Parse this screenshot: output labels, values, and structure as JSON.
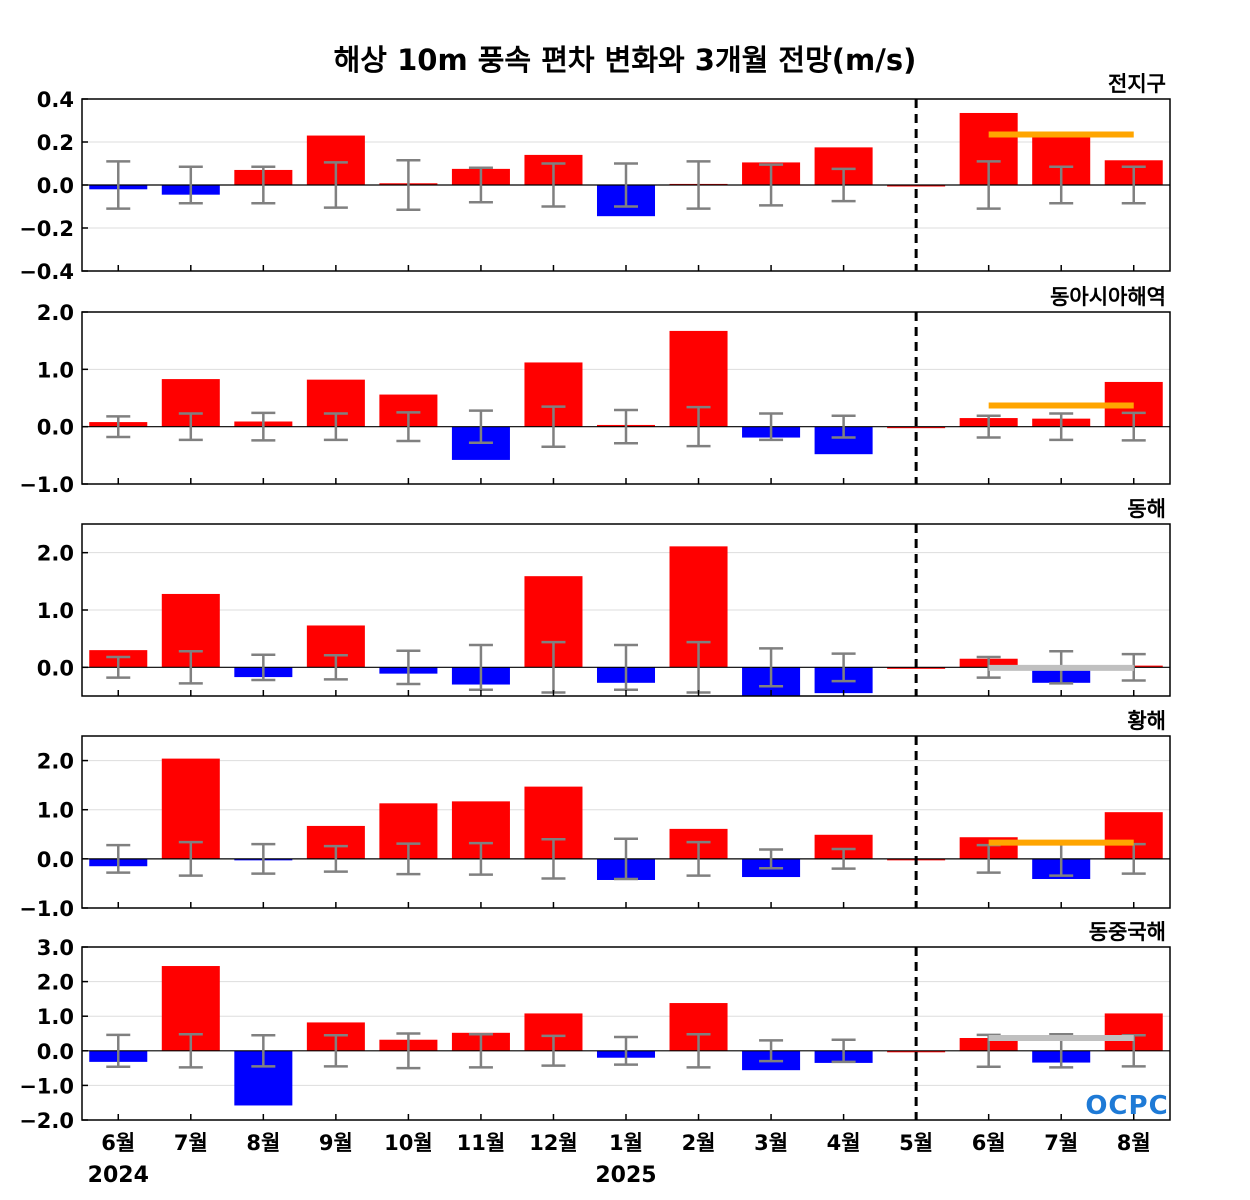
{
  "title": "해상 10m 풍속 편차 변화와 3개월 전망(m/s)",
  "logo": "OCPC",
  "colors": {
    "positive": "#ff0000",
    "negative": "#0000ff",
    "errorbar": "#808080",
    "outlook_above": "#ffa500",
    "outlook_normal": "#c0c0c0",
    "divider": "#000000"
  },
  "chart_data": {
    "type": "bar",
    "categories": [
      "6월",
      "7월",
      "8월",
      "9월",
      "10월",
      "11월",
      "12월",
      "1월",
      "2월",
      "3월",
      "4월",
      "5월",
      "6월",
      "7월",
      "8월"
    ],
    "year_labels": [
      {
        "index": 0,
        "text": "2024"
      },
      {
        "index": 7,
        "text": "2025"
      }
    ],
    "forecast_divider_after_index": 11,
    "panels": [
      {
        "name": "전지구",
        "ylim": [
          -0.4,
          0.4
        ],
        "ticks": [
          0.4,
          0.2,
          0.0,
          -0.2,
          -0.4
        ],
        "tick_labels": [
          "0.4",
          "0.2",
          "0.0",
          "−0.2",
          "−0.4"
        ],
        "values": [
          -0.02,
          -0.045,
          0.07,
          0.23,
          0.008,
          0.075,
          0.14,
          -0.145,
          0.005,
          0.105,
          0.175,
          0.0,
          0.335,
          0.235,
          0.115
        ],
        "error_half": [
          0.11,
          0.085,
          0.085,
          0.105,
          0.115,
          0.08,
          0.1,
          0.1,
          0.11,
          0.095,
          0.075,
          null,
          0.11,
          0.085,
          0.085
        ],
        "outlook": {
          "value": 0.235,
          "color": "outlook_above"
        }
      },
      {
        "name": "동아시아해역",
        "ylim": [
          -1.0,
          2.0
        ],
        "ticks": [
          2.0,
          1.0,
          0.0,
          -1.0
        ],
        "tick_labels": [
          "2.0",
          "1.0",
          "0.0",
          "−1.0"
        ],
        "values": [
          0.08,
          0.83,
          0.09,
          0.82,
          0.56,
          -0.58,
          1.12,
          0.03,
          1.67,
          -0.19,
          -0.48,
          0.0,
          0.15,
          0.14,
          0.78
        ],
        "error_half": [
          0.18,
          0.23,
          0.24,
          0.23,
          0.25,
          0.28,
          0.35,
          0.29,
          0.34,
          0.23,
          0.19,
          null,
          0.19,
          0.23,
          0.24
        ],
        "outlook": {
          "value": 0.37,
          "color": "outlook_above"
        }
      },
      {
        "name": "동해",
        "ylim": [
          -0.5,
          2.5
        ],
        "ticks": [
          2.0,
          1.0,
          0.0
        ],
        "tick_labels": [
          "2.0",
          "1.0",
          "0.0"
        ],
        "values": [
          0.3,
          1.28,
          -0.17,
          0.73,
          -0.11,
          -0.3,
          1.59,
          -0.27,
          2.11,
          -0.52,
          -0.45,
          0.0,
          0.15,
          -0.27,
          0.03
        ],
        "error_half": [
          0.18,
          0.28,
          0.22,
          0.21,
          0.29,
          0.39,
          0.44,
          0.39,
          0.44,
          0.33,
          0.24,
          null,
          0.18,
          0.28,
          0.23
        ],
        "outlook": {
          "value": -0.01,
          "color": "outlook_normal"
        }
      },
      {
        "name": "황해",
        "ylim": [
          -1.0,
          2.5
        ],
        "ticks": [
          2.0,
          1.0,
          0.0,
          -1.0
        ],
        "tick_labels": [
          "2.0",
          "1.0",
          "0.0",
          "−1.0"
        ],
        "values": [
          -0.15,
          2.04,
          -0.02,
          0.67,
          1.13,
          1.17,
          1.47,
          -0.43,
          0.61,
          -0.37,
          0.49,
          0.0,
          0.44,
          -0.41,
          0.95
        ],
        "error_half": [
          0.28,
          0.34,
          0.3,
          0.26,
          0.31,
          0.32,
          0.4,
          0.41,
          0.34,
          0.19,
          0.2,
          null,
          0.28,
          0.34,
          0.3
        ],
        "outlook": {
          "value": 0.33,
          "color": "outlook_above"
        }
      },
      {
        "name": "동중국해",
        "ylim": [
          -2.0,
          3.0
        ],
        "ticks": [
          3.0,
          2.0,
          1.0,
          0.0,
          -1.0,
          -2.0
        ],
        "tick_labels": [
          "3.0",
          "2.0",
          "1.0",
          "0.0",
          "−1.0",
          "−2.0"
        ],
        "values": [
          -0.32,
          2.45,
          -1.58,
          0.82,
          0.32,
          0.52,
          1.08,
          -0.2,
          1.38,
          -0.56,
          -0.35,
          0.0,
          0.37,
          -0.34,
          1.08
        ],
        "error_half": [
          0.46,
          0.48,
          0.45,
          0.45,
          0.5,
          0.48,
          0.43,
          0.4,
          0.48,
          0.3,
          0.32,
          null,
          0.46,
          0.48,
          0.45
        ],
        "outlook": {
          "value": 0.37,
          "color": "outlook_normal"
        }
      }
    ]
  }
}
